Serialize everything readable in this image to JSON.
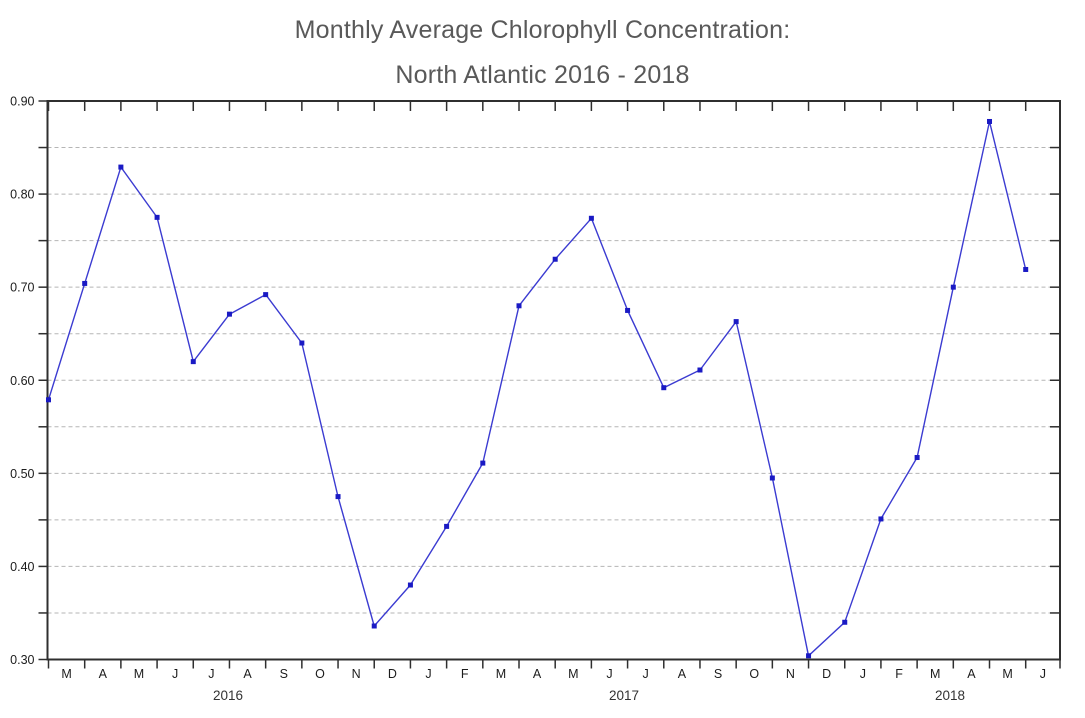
{
  "chart": {
    "title_line1": "Monthly Average Chlorophyll Concentration:",
    "title_line2": "North Atlantic 2016 - 2018"
  },
  "chart_data": {
    "type": "line",
    "title": "Monthly Average Chlorophyll Concentration: North Atlantic 2016 - 2018",
    "xlabel": "",
    "ylabel": "",
    "ylim": [
      0.3,
      0.9
    ],
    "ytick_labels": [
      "0.30",
      "0.40",
      "0.50",
      "0.60",
      "0.70",
      "0.80",
      "0.90"
    ],
    "grid_step": 0.05,
    "grid_style": "dashed horizontal",
    "legend_position": "none",
    "months": [
      "M",
      "A",
      "M",
      "J",
      "J",
      "A",
      "S",
      "O",
      "N",
      "D",
      "J",
      "F",
      "M",
      "A",
      "M",
      "J",
      "J",
      "A",
      "S",
      "O",
      "N",
      "D",
      "J",
      "F",
      "M",
      "A",
      "M",
      "J"
    ],
    "year_labels": [
      "2016",
      "2017",
      "2018"
    ],
    "series": [
      {
        "name": "Monthly average chlorophyll concentration",
        "marker": "square",
        "values": [
          0.579,
          0.704,
          0.829,
          0.775,
          0.62,
          0.671,
          0.692,
          0.64,
          0.475,
          0.336,
          0.38,
          0.443,
          0.511,
          0.68,
          0.73,
          0.774,
          0.675,
          0.592,
          0.611,
          0.663,
          0.495,
          0.304,
          0.34,
          0.451,
          0.517,
          0.7,
          0.878,
          0.719
        ]
      }
    ],
    "points": [
      {
        "year": 2016,
        "month": "Mar",
        "value": 0.579
      },
      {
        "year": 2016,
        "month": "Apr",
        "value": 0.704
      },
      {
        "year": 2016,
        "month": "May",
        "value": 0.829
      },
      {
        "year": 2016,
        "month": "Jun",
        "value": 0.775
      },
      {
        "year": 2016,
        "month": "Jul",
        "value": 0.62
      },
      {
        "year": 2016,
        "month": "Aug",
        "value": 0.671
      },
      {
        "year": 2016,
        "month": "Sep",
        "value": 0.692
      },
      {
        "year": 2016,
        "month": "Oct",
        "value": 0.64
      },
      {
        "year": 2016,
        "month": "Nov",
        "value": 0.475
      },
      {
        "year": 2016,
        "month": "Dec",
        "value": 0.336
      },
      {
        "year": 2017,
        "month": "Jan",
        "value": 0.38
      },
      {
        "year": 2017,
        "month": "Feb",
        "value": 0.443
      },
      {
        "year": 2017,
        "month": "Mar",
        "value": 0.511
      },
      {
        "year": 2017,
        "month": "Apr",
        "value": 0.68
      },
      {
        "year": 2017,
        "month": "May",
        "value": 0.73
      },
      {
        "year": 2017,
        "month": "Jun",
        "value": 0.774
      },
      {
        "year": 2017,
        "month": "Jul",
        "value": 0.675
      },
      {
        "year": 2017,
        "month": "Aug",
        "value": 0.592
      },
      {
        "year": 2017,
        "month": "Sep",
        "value": 0.611
      },
      {
        "year": 2017,
        "month": "Oct",
        "value": 0.663
      },
      {
        "year": 2017,
        "month": "Nov",
        "value": 0.495
      },
      {
        "year": 2017,
        "month": "Dec",
        "value": 0.304
      },
      {
        "year": 2018,
        "month": "Jan",
        "value": 0.34
      },
      {
        "year": 2018,
        "month": "Feb",
        "value": 0.451
      },
      {
        "year": 2018,
        "month": "Mar",
        "value": 0.517
      },
      {
        "year": 2018,
        "month": "Apr",
        "value": 0.7
      },
      {
        "year": 2018,
        "month": "May",
        "value": 0.878
      },
      {
        "year": 2018,
        "month": "Jun",
        "value": 0.719
      }
    ],
    "colors": {
      "line": "#3b3bd1",
      "marker": "#1a1ac4",
      "grid": "#b5b5b5",
      "axis": "#2f2f2f",
      "tick_text": "#1c1c1c",
      "title_text": "#595959"
    }
  }
}
